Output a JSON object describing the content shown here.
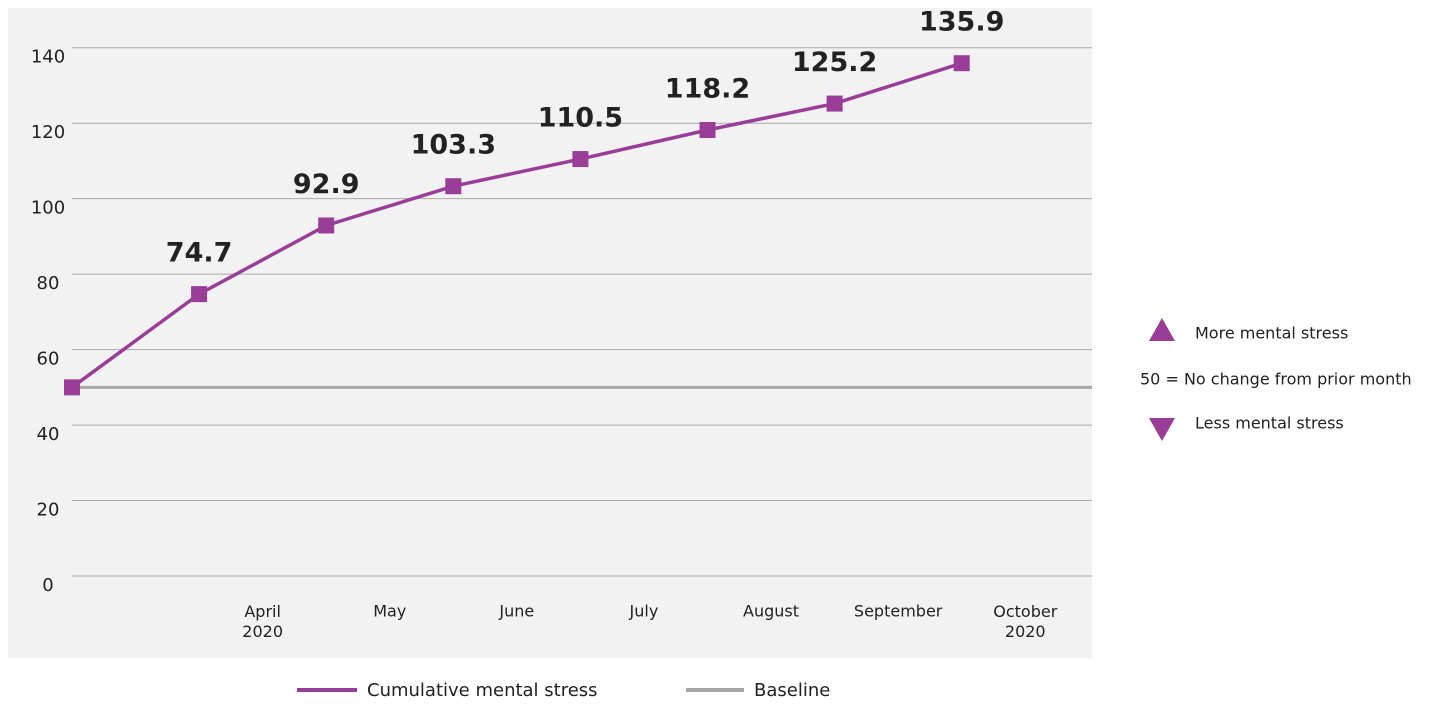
{
  "chart_data": {
    "type": "line",
    "categories": [
      null,
      "April\n2020",
      "May",
      "June",
      "July",
      "August",
      "September",
      "October\n2020"
    ],
    "series": [
      {
        "name": "Cumulative mental stress",
        "color": "#993d98",
        "values": [
          50,
          74.7,
          92.9,
          103.3,
          110.5,
          118.2,
          125.2,
          135.9
        ],
        "value_labels": [
          null,
          "74.7",
          "92.9",
          "103.3",
          "110.5",
          "118.2",
          "125.2",
          "135.9"
        ]
      }
    ],
    "baseline": {
      "name": "Baseline",
      "value": 50,
      "color": "#a6a6a6"
    },
    "ylim": [
      0,
      150
    ],
    "yticks": [
      0,
      20,
      40,
      60,
      80,
      100,
      120,
      140
    ],
    "grid": true,
    "annotations": [
      "More mental stress",
      "50 = No change from prior month",
      "Less mental stress"
    ]
  }
}
